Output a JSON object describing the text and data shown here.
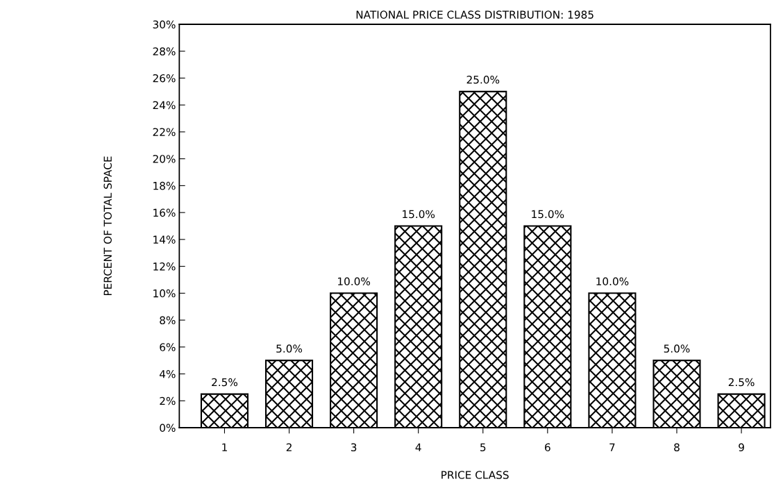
{
  "chart_data": {
    "type": "bar",
    "title": "NATIONAL PRICE CLASS DISTRIBUTION: 1985",
    "xlabel": "PRICE CLASS",
    "ylabel": "PERCENT OF TOTAL SPACE",
    "categories": [
      "1",
      "2",
      "3",
      "4",
      "5",
      "6",
      "7",
      "8",
      "9"
    ],
    "values": [
      2.5,
      5,
      10,
      15,
      25,
      15,
      10,
      5,
      2.5
    ],
    "value_labels": [
      "2.5%",
      "5.0%",
      "10.0%",
      "15.0%",
      "25.0%",
      "15.0%",
      "10.0%",
      "5.0%",
      "2.5%"
    ],
    "color": "#000000",
    "ylim": [
      0,
      30
    ],
    "yticks": [
      {
        "value": 0,
        "label": "0%"
      },
      {
        "value": 2,
        "label": "2%"
      },
      {
        "value": 4,
        "label": "4%"
      },
      {
        "value": 6,
        "label": "6%"
      },
      {
        "value": 8,
        "label": "8%"
      },
      {
        "value": 10,
        "label": "10%"
      },
      {
        "value": 12,
        "label": "12%"
      },
      {
        "value": 14,
        "label": "14%"
      },
      {
        "value": 16,
        "label": "16%"
      },
      {
        "value": 18,
        "label": "18%"
      },
      {
        "value": 20,
        "label": "20%"
      },
      {
        "value": 22,
        "label": "22%"
      },
      {
        "value": 24,
        "label": "24%"
      },
      {
        "value": 26,
        "label": "26%"
      },
      {
        "value": 28,
        "label": "28%"
      },
      {
        "value": 30,
        "label": "30%"
      }
    ],
    "grid": false
  }
}
